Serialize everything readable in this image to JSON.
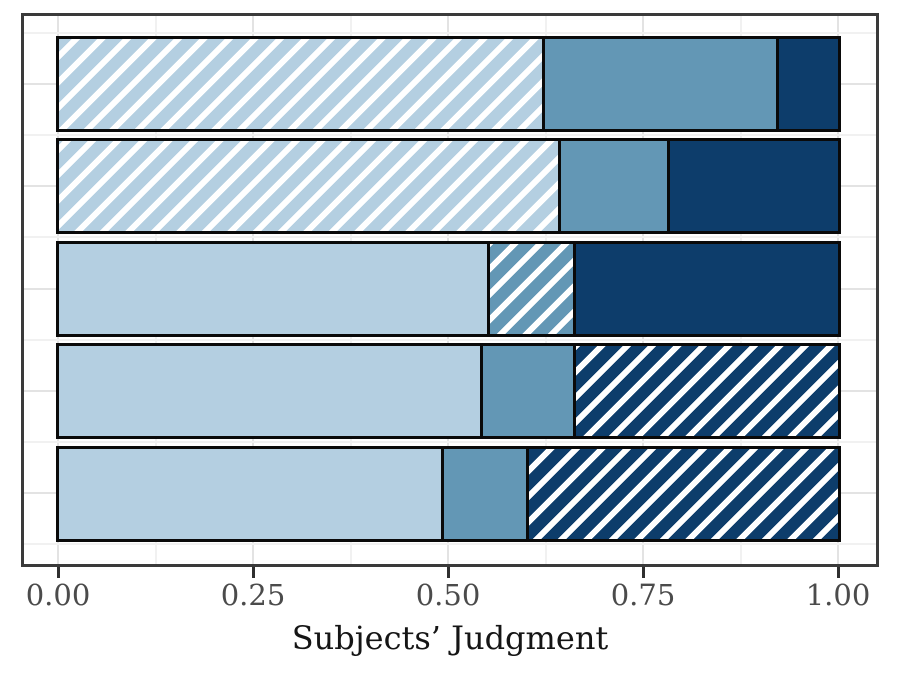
{
  "chart_data": {
    "type": "bar",
    "orientation": "horizontal",
    "stacked": true,
    "title": "",
    "xlabel": "Subjects’ Judgment",
    "ylabel": "",
    "xlim": [
      0,
      1
    ],
    "x_ticks": [
      0,
      0.25,
      0.5,
      0.75,
      1
    ],
    "x_tick_labels": [
      "0.00",
      "0.25",
      "0.50",
      "0.75",
      "1.00"
    ],
    "x_minor_ticks": [
      0.125,
      0.375,
      0.625,
      0.875
    ],
    "grid": "on",
    "legend": "none",
    "n_rows": 5,
    "colors": {
      "light": "#b4cfe1",
      "medium": "#6397b5",
      "dark": "#0d3d6b"
    },
    "rows": [
      {
        "segments": [
          {
            "value": 0.62,
            "color": "light",
            "hatched": true
          },
          {
            "value": 0.3,
            "color": "medium",
            "hatched": false
          },
          {
            "value": 0.08,
            "color": "dark",
            "hatched": false
          }
        ]
      },
      {
        "segments": [
          {
            "value": 0.64,
            "color": "light",
            "hatched": true
          },
          {
            "value": 0.14,
            "color": "medium",
            "hatched": false
          },
          {
            "value": 0.22,
            "color": "dark",
            "hatched": false
          }
        ]
      },
      {
        "segments": [
          {
            "value": 0.55,
            "color": "light",
            "hatched": false
          },
          {
            "value": 0.11,
            "color": "medium",
            "hatched": true
          },
          {
            "value": 0.34,
            "color": "dark",
            "hatched": false
          }
        ]
      },
      {
        "segments": [
          {
            "value": 0.54,
            "color": "light",
            "hatched": false
          },
          {
            "value": 0.12,
            "color": "medium",
            "hatched": false
          },
          {
            "value": 0.34,
            "color": "dark",
            "hatched": true
          }
        ]
      },
      {
        "segments": [
          {
            "value": 0.49,
            "color": "light",
            "hatched": false
          },
          {
            "value": 0.11,
            "color": "medium",
            "hatched": false
          },
          {
            "value": 0.4,
            "color": "dark",
            "hatched": true
          }
        ]
      }
    ]
  }
}
